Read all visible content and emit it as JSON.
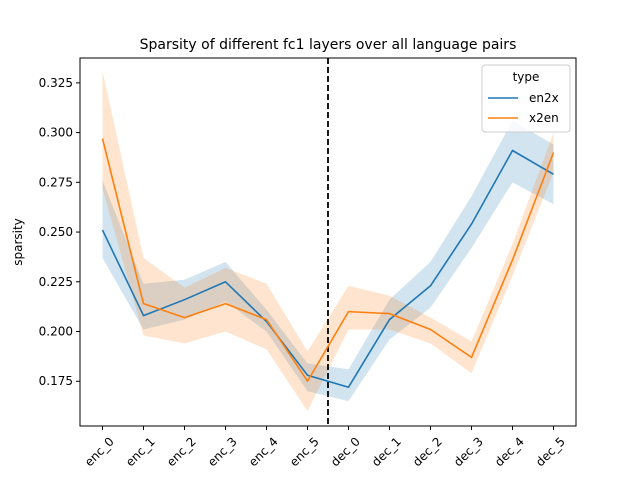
{
  "chart_data": {
    "type": "line",
    "title": "Sparsity of different fc1 layers over all language pairs",
    "xlabel": "",
    "ylabel": "sparsity",
    "categories": [
      "enc_0",
      "enc_1",
      "enc_2",
      "enc_3",
      "enc_4",
      "enc_5",
      "dec_0",
      "dec_1",
      "dec_2",
      "dec_3",
      "dec_4",
      "dec_5"
    ],
    "ylim": [
      0.1525,
      0.3375
    ],
    "yticks": [
      0.175,
      0.2,
      0.225,
      0.25,
      0.275,
      0.3,
      0.325
    ],
    "ytick_labels": [
      "0.175",
      "0.200",
      "0.225",
      "0.250",
      "0.275",
      "0.300",
      "0.325"
    ],
    "grid": false,
    "legend": {
      "title": "type",
      "position": "top-right"
    },
    "divider": {
      "between": [
        "enc_5",
        "dec_0"
      ],
      "style": "dashed",
      "color": "#000000"
    },
    "series": [
      {
        "name": "en2x",
        "color": "#1f77b4",
        "band_color": "#1f77b4",
        "values": [
          0.251,
          0.208,
          0.216,
          0.225,
          0.205,
          0.178,
          0.172,
          0.206,
          0.223,
          0.254,
          0.291,
          0.279
        ],
        "lower": [
          0.237,
          0.201,
          0.206,
          0.215,
          0.2,
          0.17,
          0.165,
          0.196,
          0.212,
          0.242,
          0.275,
          0.264
        ],
        "upper": [
          0.276,
          0.224,
          0.226,
          0.235,
          0.211,
          0.184,
          0.181,
          0.216,
          0.235,
          0.268,
          0.306,
          0.294
        ]
      },
      {
        "name": "x2en",
        "color": "#ff7f0e",
        "band_color": "#ff7f0e",
        "values": [
          0.297,
          0.214,
          0.207,
          0.214,
          0.206,
          0.175,
          0.21,
          0.209,
          0.201,
          0.187,
          0.236,
          0.29
        ],
        "lower": [
          0.272,
          0.198,
          0.194,
          0.2,
          0.191,
          0.16,
          0.201,
          0.201,
          0.194,
          0.179,
          0.228,
          0.28
        ],
        "upper": [
          0.331,
          0.237,
          0.222,
          0.232,
          0.224,
          0.19,
          0.223,
          0.218,
          0.207,
          0.195,
          0.244,
          0.3
        ]
      }
    ]
  }
}
